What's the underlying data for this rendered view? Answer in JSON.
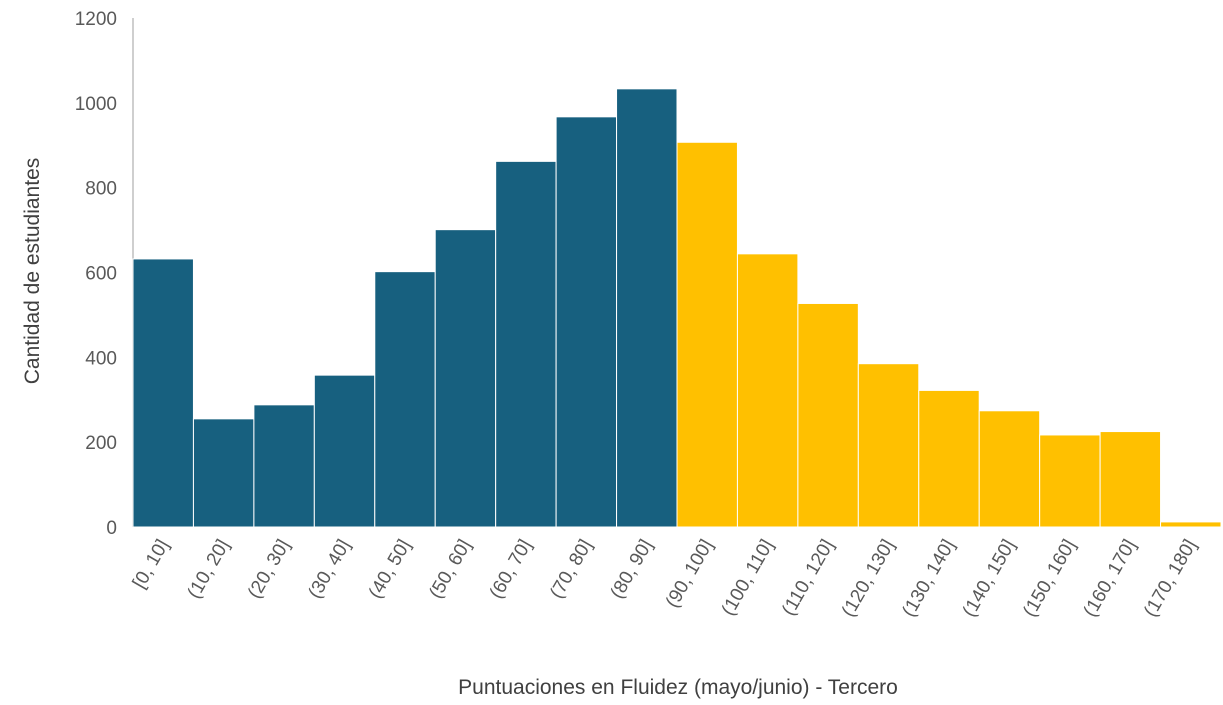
{
  "chart_data": {
    "type": "bar",
    "title": "",
    "xlabel": "Puntuaciones en Fluidez (mayo/junio) - Tercero",
    "ylabel": "Cantidad de estudiantes",
    "ylim": [
      0,
      1200
    ],
    "yticks": [
      0,
      200,
      400,
      600,
      800,
      1000,
      1200
    ],
    "grid": false,
    "legend": "none",
    "categories": [
      "[0, 10]",
      "(10, 20]",
      "(20, 30]",
      "(30, 40]",
      "(40, 50]",
      "(50, 60]",
      "(60, 70]",
      "(70, 80]",
      "(80, 90]",
      "(90, 100]",
      "(100, 110]",
      "(110, 120]",
      "(120, 130]",
      "(130, 140]",
      "(140, 150]",
      "(150, 160]",
      "(160, 170]",
      "(170, 180]"
    ],
    "values": [
      632,
      255,
      288,
      358,
      602,
      701,
      862,
      967,
      1033,
      907,
      644,
      527,
      385,
      322,
      274,
      217,
      225,
      12
    ],
    "colors": [
      "#17607f",
      "#17607f",
      "#17607f",
      "#17607f",
      "#17607f",
      "#17607f",
      "#17607f",
      "#17607f",
      "#17607f",
      "#ffc000",
      "#ffc000",
      "#ffc000",
      "#ffc000",
      "#ffc000",
      "#ffc000",
      "#ffc000",
      "#ffc000",
      "#ffc000"
    ],
    "bar_edge_color": "#ffffff"
  }
}
